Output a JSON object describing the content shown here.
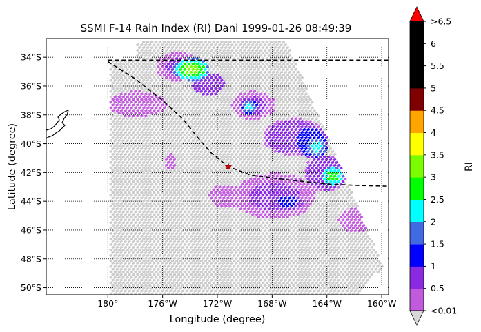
{
  "title": "SSMI F-14 Rain Index (RI) Dani 1999-01-26 08:49:39",
  "xlabel": "Longitude (degree)",
  "ylabel": "Latitude (degree)",
  "colorbar": {
    "label": "RI",
    "ticks": [
      ">6.5",
      "6",
      "5.5",
      "5",
      "4.5",
      "4",
      "3.5",
      "3",
      "2.5",
      "2",
      "1.5",
      "1",
      "0.5",
      "<0.01"
    ],
    "colors_bottom_to_top": [
      "#c05cdc",
      "#8a2be2",
      "#0000ff",
      "#4169e1",
      "#00ffff",
      "#00ff00",
      "#7cfc00",
      "#ffff00",
      "#ffa500",
      "#800000",
      "#000000",
      "#000000",
      "#000000"
    ],
    "extend_over_color": "#ff0000",
    "extend_under_color": "#d8d8d8"
  },
  "map": {
    "lon_range": [
      -184.5,
      -159.5
    ],
    "lat_range": [
      -50.5,
      -32.7
    ],
    "lon_ticks": [
      "180°",
      "176°W",
      "172°W",
      "168°W",
      "164°W",
      "160°W"
    ],
    "lat_ticks": [
      "34°S",
      "36°S",
      "38°S",
      "40°S",
      "42°S",
      "44°S",
      "46°S",
      "48°S",
      "50°S"
    ],
    "no_rain_color": "#cccccc",
    "track_color": "#000000",
    "storm_center_color": "#cc0000"
  },
  "chart_data": {
    "type": "heatmap",
    "title": "SSMI F-14 Rain Index (RI) Dani 1999-01-26 08:49:39",
    "xlabel": "Longitude (degree)",
    "ylabel": "Latitude (degree)",
    "xlim": [
      -184.5,
      -159.5
    ],
    "ylim": [
      -50.5,
      -32.7
    ],
    "legend": "colorbar right",
    "grid": true,
    "storm_center": {
      "lon": -171.2,
      "lat": -41.6
    },
    "track": [
      {
        "lon": -180.0,
        "lat": -34.3
      },
      {
        "lon": -178.0,
        "lat": -35.5
      },
      {
        "lon": -176.0,
        "lat": -37.0
      },
      {
        "lon": -174.5,
        "lat": -38.3
      },
      {
        "lon": -173.5,
        "lat": -39.5
      },
      {
        "lon": -172.5,
        "lat": -40.6
      },
      {
        "lon": -171.2,
        "lat": -41.6
      },
      {
        "lon": -169.5,
        "lat": -42.2
      },
      {
        "lon": -167.0,
        "lat": -42.5
      },
      {
        "lon": -164.0,
        "lat": -42.8
      },
      {
        "lon": -161.5,
        "lat": -42.9
      },
      {
        "lon": -159.5,
        "lat": -42.95
      }
    ],
    "boundary_lat": -34.2,
    "rain_cells": [
      {
        "lon": -175.0,
        "lat": -34.6,
        "rx": 1.6,
        "ry": 1.0,
        "ri": 0.6
      },
      {
        "lon": -174.0,
        "lat": -34.8,
        "rx": 1.3,
        "ry": 0.8,
        "ri": 3.2
      },
      {
        "lon": -172.8,
        "lat": -35.8,
        "rx": 1.2,
        "ry": 0.8,
        "ri": 1.0
      },
      {
        "lon": -169.5,
        "lat": -37.3,
        "rx": 1.6,
        "ry": 1.0,
        "ri": 0.6
      },
      {
        "lon": -169.8,
        "lat": -37.4,
        "rx": 0.6,
        "ry": 0.5,
        "ri": 2.2
      },
      {
        "lon": -166.5,
        "lat": -39.5,
        "rx": 2.3,
        "ry": 1.3,
        "ri": 0.8
      },
      {
        "lon": -165.3,
        "lat": -39.8,
        "rx": 1.2,
        "ry": 1.1,
        "ri": 1.5
      },
      {
        "lon": -164.9,
        "lat": -40.2,
        "rx": 0.8,
        "ry": 0.7,
        "ri": 2.3
      },
      {
        "lon": -164.2,
        "lat": -42.0,
        "rx": 1.6,
        "ry": 1.3,
        "ri": 0.8
      },
      {
        "lon": -163.7,
        "lat": -42.2,
        "rx": 0.8,
        "ry": 0.7,
        "ri": 2.9
      },
      {
        "lon": -168.0,
        "lat": -43.6,
        "rx": 3.0,
        "ry": 1.6,
        "ri": 0.6
      },
      {
        "lon": -167.0,
        "lat": -44.0,
        "rx": 1.1,
        "ry": 0.6,
        "ri": 1.2
      },
      {
        "lon": -178.0,
        "lat": -37.2,
        "rx": 2.2,
        "ry": 0.9,
        "ri": 0.2
      },
      {
        "lon": -171.5,
        "lat": -43.6,
        "rx": 1.3,
        "ry": 0.8,
        "ri": 0.2
      },
      {
        "lon": -175.5,
        "lat": -41.2,
        "rx": 0.4,
        "ry": 0.6,
        "ri": 0.2
      },
      {
        "lon": -162.0,
        "lat": -45.3,
        "rx": 1.3,
        "ry": 0.9,
        "ri": 0.5
      }
    ]
  }
}
